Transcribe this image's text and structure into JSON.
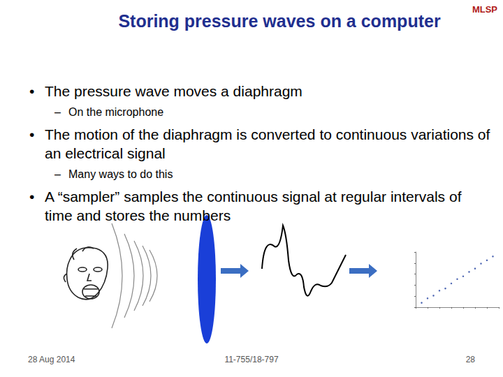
{
  "header": {
    "title": "Storing pressure waves on a computer",
    "logo": "MLSP"
  },
  "bullets": [
    {
      "text": "The pressure wave moves a diaphragm",
      "sub": [
        "On the microphone"
      ]
    },
    {
      "text": "The motion of the diaphragm is converted to continuous variations of an electrical signal",
      "sub": [
        "Many ways to do this"
      ]
    },
    {
      "text": "A “sampler” samples the continuous signal at regular intervals of time and stores the numbers"
    }
  ],
  "footer": {
    "date": "28 Aug 2014",
    "course": "11-755/18-797",
    "page": "28"
  },
  "chart_data": {
    "type": "scatter",
    "x": [
      1,
      2,
      3,
      4,
      5,
      6,
      7,
      8,
      9,
      10,
      11,
      12,
      13
    ],
    "values": [
      0.8,
      1.6,
      2.1,
      3.0,
      3.4,
      4.3,
      5.1,
      5.6,
      6.4,
      7.0,
      7.9,
      8.5,
      9.2
    ],
    "xlim": [
      0,
      14
    ],
    "xticks": [
      0,
      2,
      4,
      6,
      8,
      10,
      12,
      14
    ],
    "ylim": [
      0,
      10
    ],
    "yticks": [
      0,
      2,
      4,
      6,
      8,
      10
    ],
    "color": "#1f3f9f",
    "grid": false,
    "tick_labels": false
  }
}
